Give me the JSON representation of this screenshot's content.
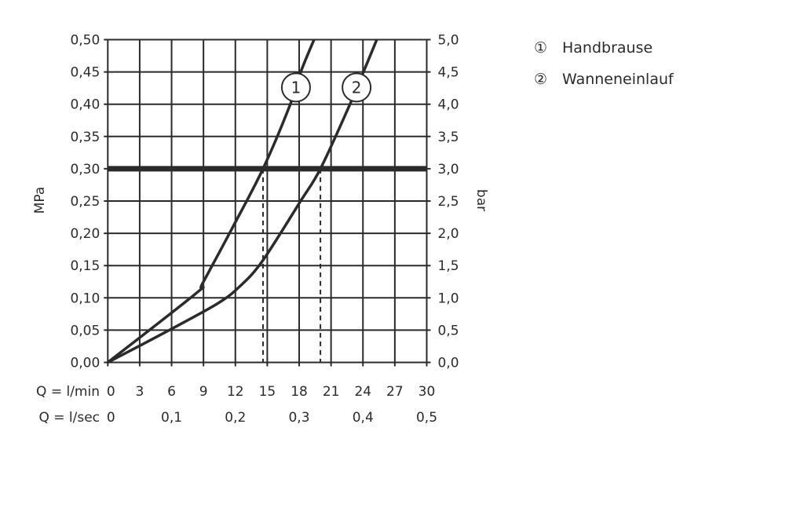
{
  "chart_data": {
    "type": "line",
    "xlabel": "Q = l/min",
    "xlabel2": "Q = l/sec",
    "ylabel_left": "MPa",
    "ylabel_right": "bar",
    "xlim": [
      0,
      30
    ],
    "ylim": [
      0,
      0.5
    ],
    "grid": true,
    "legend_placement": "top-right outside",
    "x_ticks": [
      "0",
      "3",
      "6",
      "9",
      "12",
      "15",
      "18",
      "21",
      "24",
      "27",
      "30"
    ],
    "x_ticks_values": [
      0,
      3,
      6,
      9,
      12,
      15,
      18,
      21,
      24,
      27,
      30
    ],
    "x2_ticks": [
      "0",
      "0,1",
      "0,2",
      "0,3",
      "0,4",
      "0,5"
    ],
    "x2_ticks_values": [
      0,
      6,
      12,
      18,
      24,
      30
    ],
    "y_ticks_left": [
      "0,00",
      "0,05",
      "0,10",
      "0,15",
      "0,20",
      "0,25",
      "0,30",
      "0,35",
      "0,40",
      "0,45",
      "0,50"
    ],
    "y_ticks_right": [
      "0,0",
      "0,5",
      "1,0",
      "1,5",
      "2,0",
      "2,5",
      "3,0",
      "3,5",
      "4,0",
      "4,5",
      "5,0"
    ],
    "y_ticks_values": [
      0,
      0.05,
      0.1,
      0.15,
      0.2,
      0.25,
      0.3,
      0.35,
      0.4,
      0.45,
      0.5
    ],
    "reference_line_y": 0.3,
    "series": [
      {
        "name": "Handbrause",
        "marker": "1",
        "x": [
          0,
          8.3,
          8.9,
          11.8,
          14.6,
          17.1,
          18.2,
          19.4
        ],
        "y": [
          0,
          0.107,
          0.122,
          0.211,
          0.3,
          0.397,
          0.452,
          0.5
        ],
        "marker_at": [
          17.7,
          0.426
        ],
        "drop_line_x": 14.6
      },
      {
        "name": "Wanneneinlauf",
        "marker": "2",
        "x": [
          0,
          5.9,
          10.3,
          12.3,
          14.5,
          18.1,
          20.0,
          22.7,
          24.1,
          25.3
        ],
        "y": [
          0,
          0.051,
          0.091,
          0.116,
          0.156,
          0.249,
          0.3,
          0.397,
          0.452,
          0.5
        ],
        "marker_at": [
          23.4,
          0.426
        ],
        "drop_line_x": 20.0
      }
    ],
    "legend": [
      {
        "symbol": "①",
        "label": "Handbrause"
      },
      {
        "symbol": "②",
        "label": "Wanneneinlauf"
      }
    ],
    "colors": {
      "line": "#2b2b2b",
      "grid": "#2b2b2b"
    }
  }
}
